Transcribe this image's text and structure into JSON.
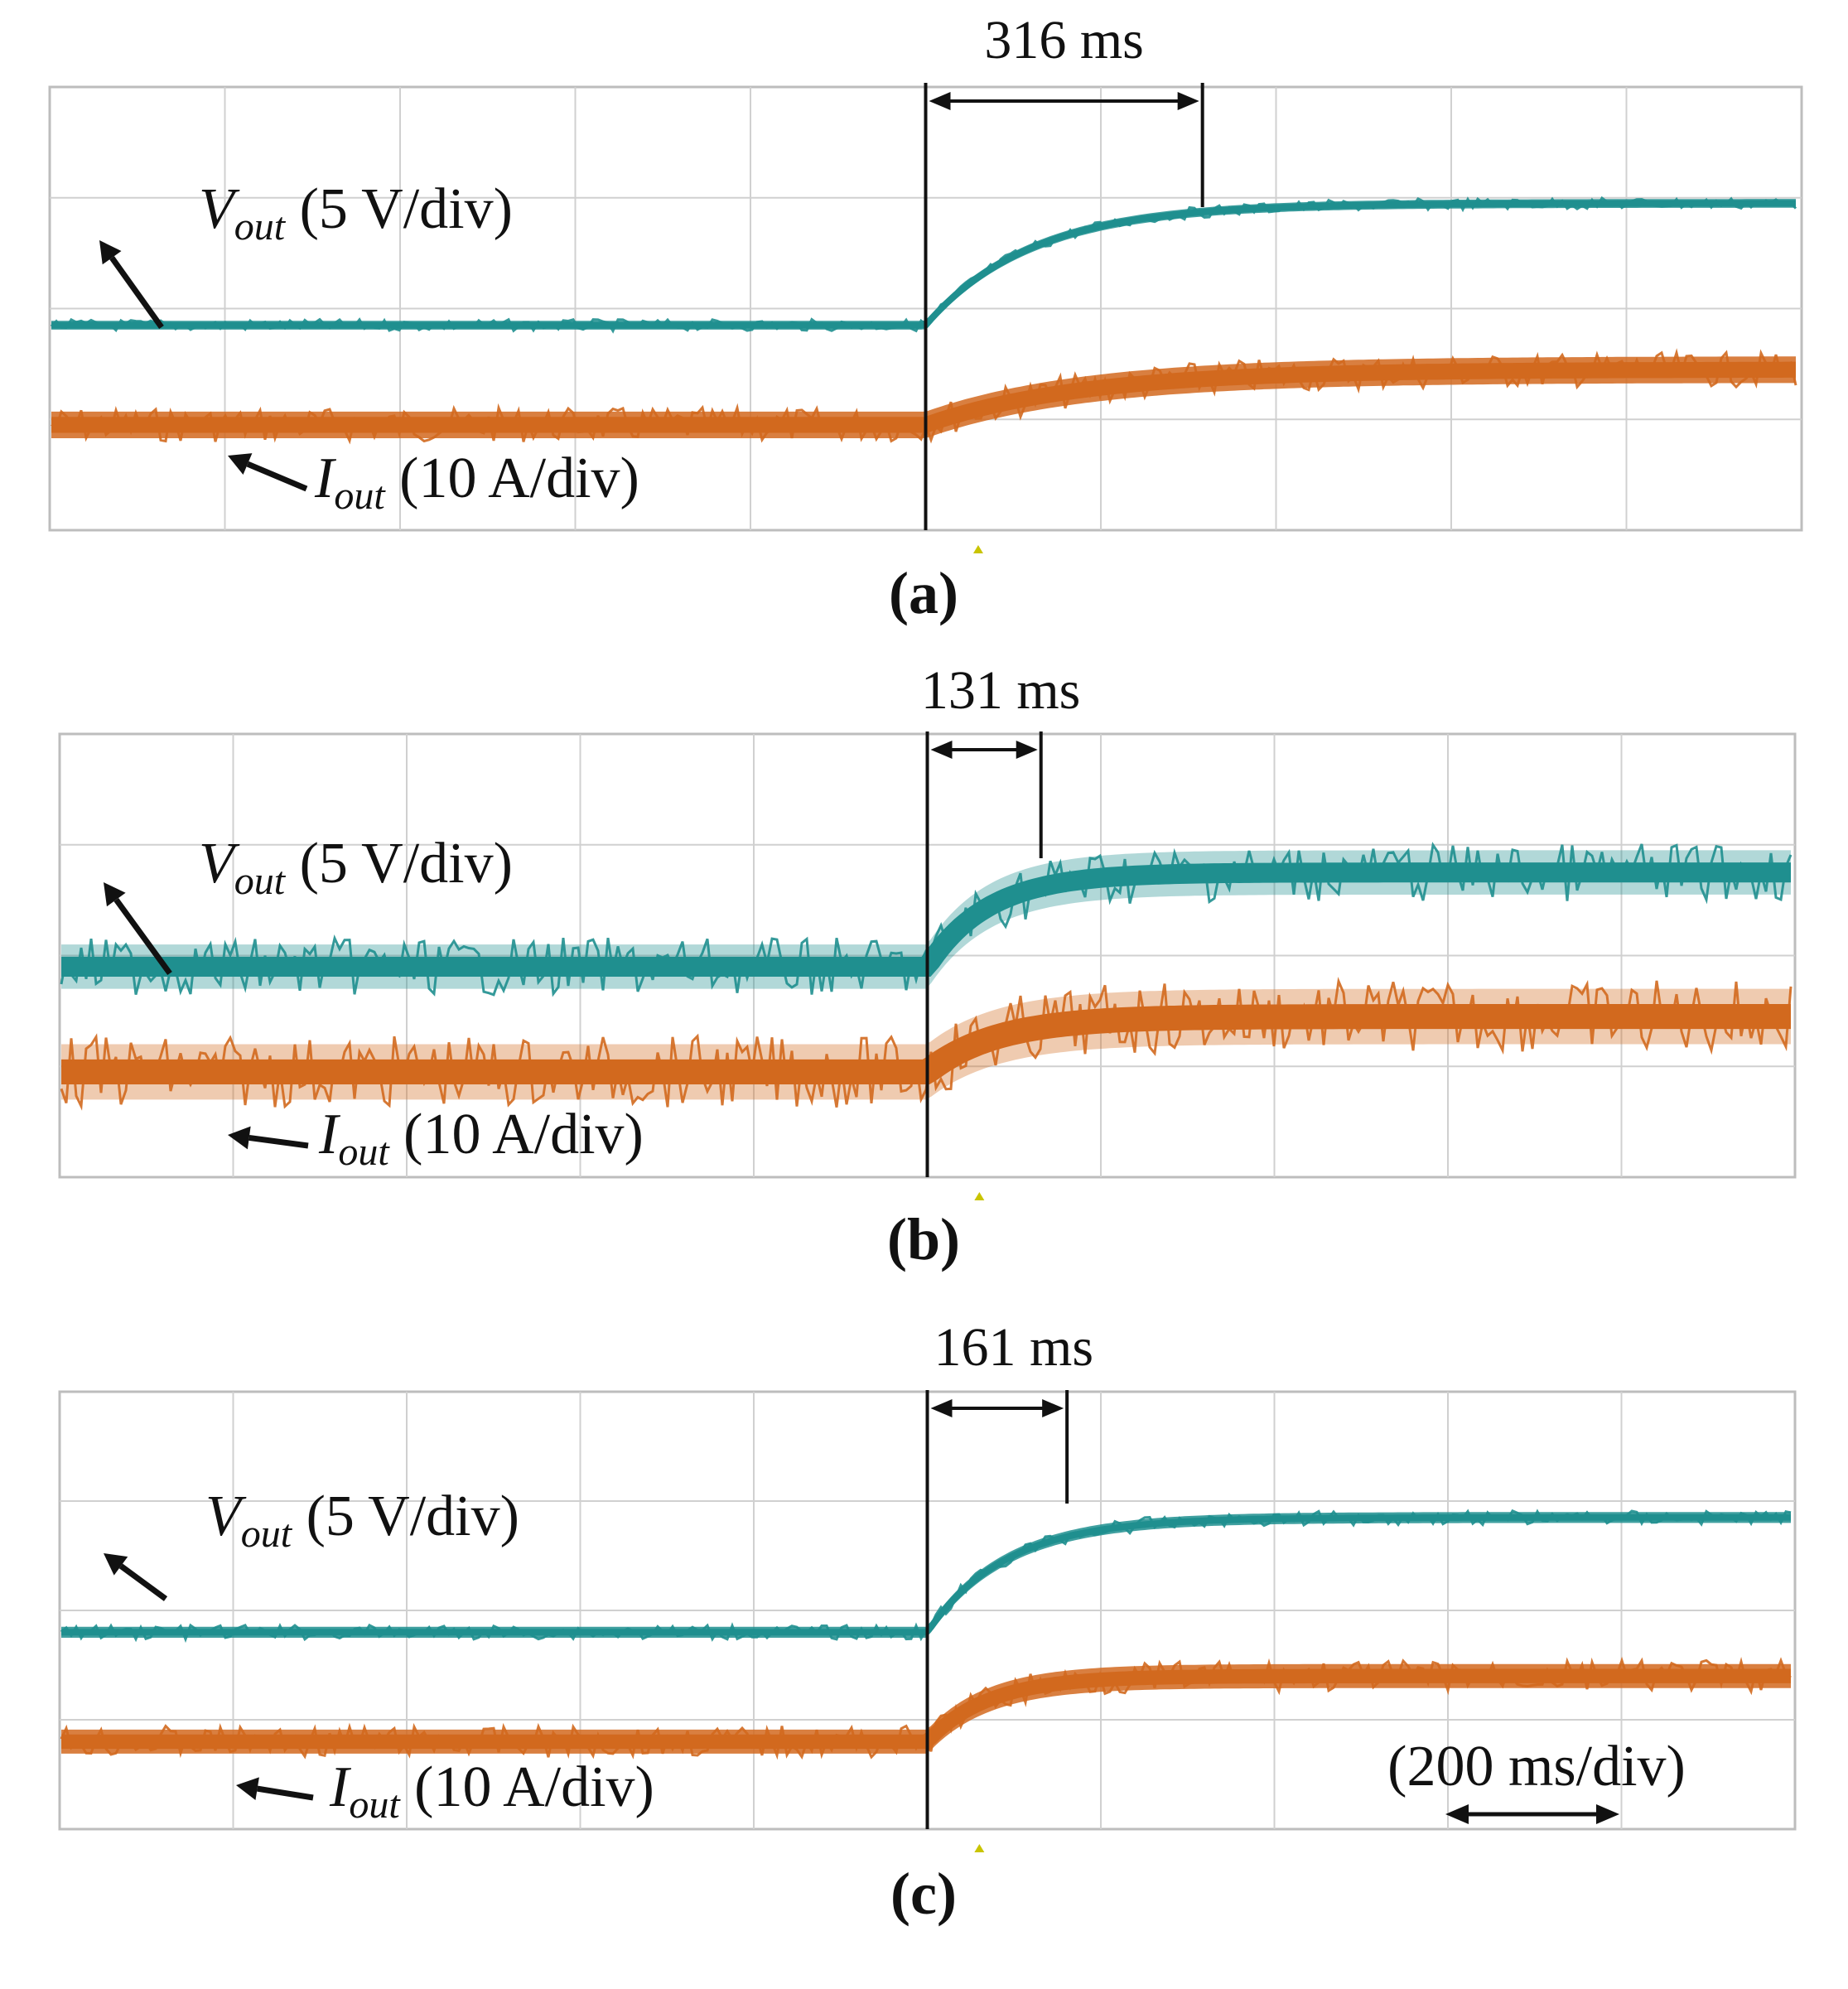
{
  "figure": {
    "captions": [
      "(a)",
      "(b)",
      "(c)"
    ]
  },
  "colors": {
    "vout": "#1f8f8f",
    "iout": "#d2691e",
    "grid": "#d0d0d0",
    "frame": "#bdbdbd"
  },
  "chart_data": [
    {
      "type": "line",
      "panel": "a",
      "caption": "(a)",
      "grid_divisions": {
        "x": 10,
        "y": 4
      },
      "x_scale_label": "",
      "step_time_div": 5,
      "interval_label": "316 ms",
      "interval_ms": 316,
      "series": [
        {
          "name": "Vout",
          "label": {
            "sym": "V",
            "sub": "out",
            "rest": " (5 V/div)"
          },
          "level_before_div": 1.85,
          "level_after_div": 2.95,
          "tau_div": 0.6,
          "ripple_div": 0.08,
          "color": "#1f8f8f"
        },
        {
          "name": "Iout",
          "label": {
            "sym": "I",
            "sub": "out",
            "rest": " (10 A/div)"
          },
          "level_before_div": 0.95,
          "level_after_div": 1.45,
          "tau_div": 0.9,
          "ripple_div": 0.24,
          "color": "#d2691e"
        }
      ]
    },
    {
      "type": "line",
      "panel": "b",
      "caption": "(b)",
      "grid_divisions": {
        "x": 10,
        "y": 4
      },
      "x_scale_label": "",
      "step_time_div": 5,
      "interval_label": "131 ms",
      "interval_ms": 131,
      "series": [
        {
          "name": "Vout",
          "label": {
            "sym": "V",
            "sub": "out",
            "rest": " (5 V/div)"
          },
          "level_before_div": 1.9,
          "level_after_div": 2.75,
          "tau_div": 0.35,
          "ripple_div": 0.4,
          "color": "#1f8f8f"
        },
        {
          "name": "Iout",
          "label": {
            "sym": "I",
            "sub": "out",
            "rest": " (10 A/div)"
          },
          "level_before_div": 0.95,
          "level_after_div": 1.45,
          "tau_div": 0.4,
          "ripple_div": 0.5,
          "color": "#d2691e"
        }
      ]
    },
    {
      "type": "line",
      "panel": "c",
      "caption": "(c)",
      "grid_divisions": {
        "x": 10,
        "y": 4
      },
      "x_scale_label": "(200 ms/div)",
      "step_time_div": 5,
      "interval_label": "161 ms",
      "interval_ms": 161,
      "series": [
        {
          "name": "Vout",
          "label": {
            "sym": "V",
            "sub": "out",
            "rest": " (5 V/div)"
          },
          "level_before_div": 1.8,
          "level_after_div": 2.85,
          "tau_div": 0.45,
          "ripple_div": 0.1,
          "color": "#1f8f8f"
        },
        {
          "name": "Iout",
          "label": {
            "sym": "I",
            "sub": "out",
            "rest": " (10 A/div)"
          },
          "level_before_div": 0.8,
          "level_after_div": 1.4,
          "tau_div": 0.35,
          "ripple_div": 0.22,
          "color": "#d2691e"
        }
      ]
    }
  ]
}
